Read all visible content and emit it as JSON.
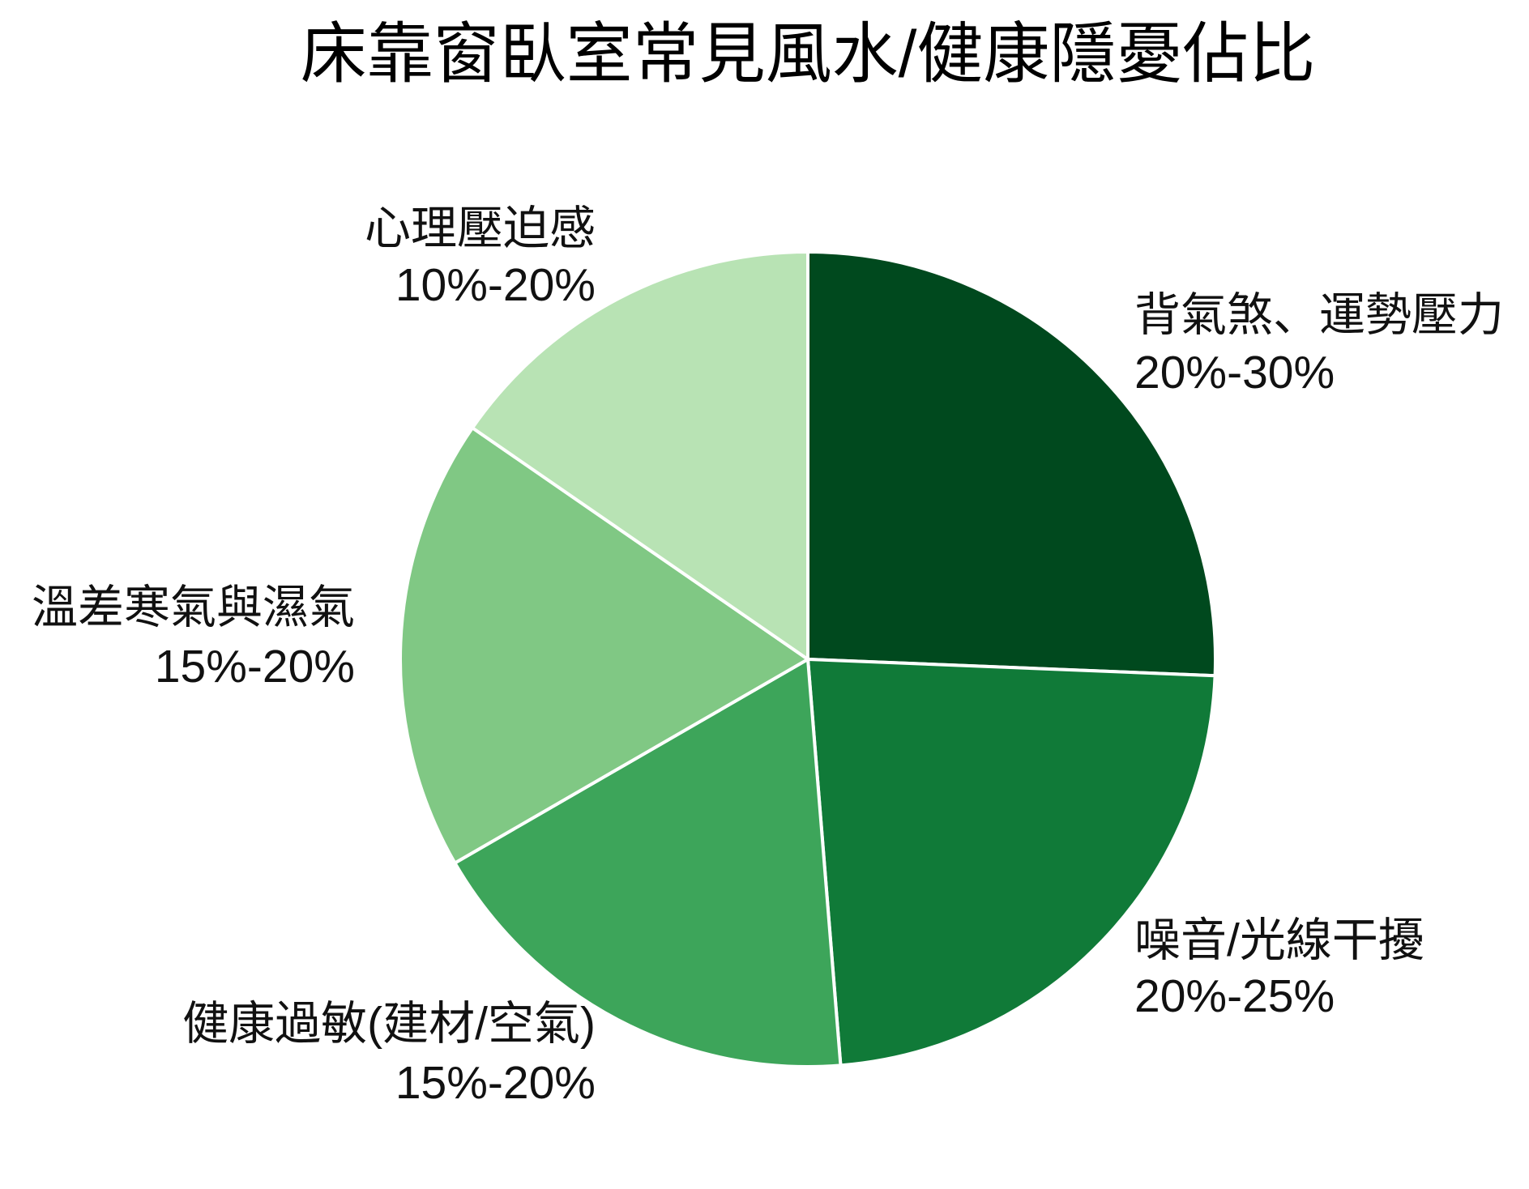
{
  "chart_data": {
    "type": "pie",
    "title": "床靠窗臥室常見風水/健康隱憂佔比",
    "slices": [
      {
        "label": "背氣煞、運勢壓力",
        "range": "20%-30%",
        "value": 25,
        "color": "#00491e"
      },
      {
        "label": "噪音/光線干擾",
        "range": "20%-25%",
        "value": 22.5,
        "color": "#107a38"
      },
      {
        "label": "健康過敏(建材/空氣)",
        "range": "15%-20%",
        "value": 17.5,
        "color": "#3da55a"
      },
      {
        "label": "溫差寒氣與濕氣",
        "range": "15%-20%",
        "value": 17.5,
        "color": "#80c884"
      },
      {
        "label": "心理壓迫感",
        "range": "10%-20%",
        "value": 15,
        "color": "#b8e3b4"
      }
    ]
  }
}
